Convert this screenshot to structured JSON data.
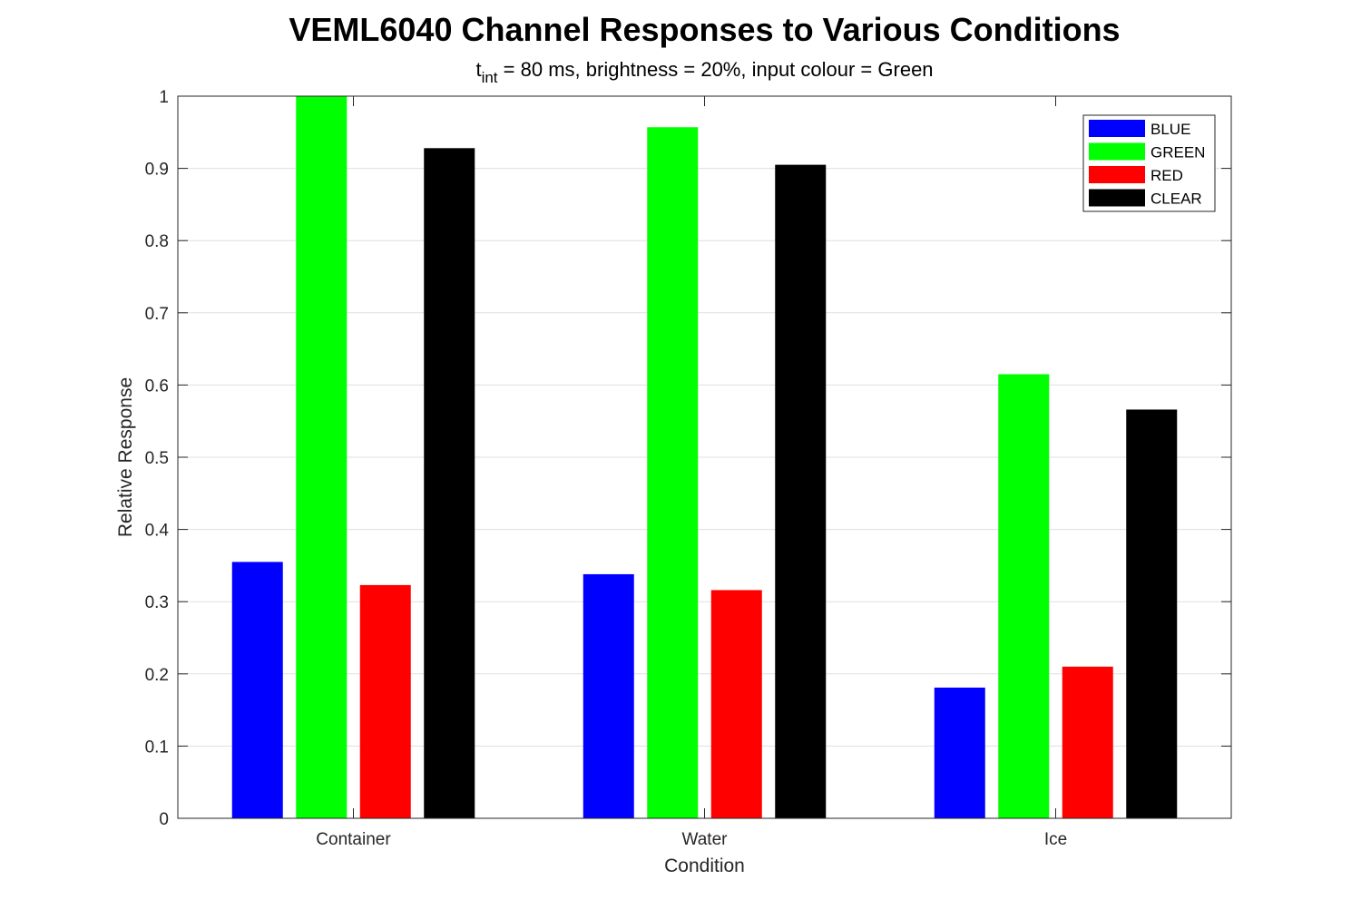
{
  "chart_data": {
    "type": "bar",
    "title": "VEML6040 Channel Responses to Various Conditions",
    "subtitle": {
      "prefix": "t",
      "subscript": "int",
      "rest": " = 80 ms, brightness = 20%, input colour = Green"
    },
    "xlabel": "Condition",
    "ylabel": "Relative Response",
    "categories": [
      "Container",
      "Water",
      "Ice"
    ],
    "ylim": [
      0,
      1
    ],
    "yticks": [
      "0",
      "0.1",
      "0.2",
      "0.3",
      "0.4",
      "0.5",
      "0.6",
      "0.7",
      "0.8",
      "0.9",
      "1"
    ],
    "grid": true,
    "legend_position": "top-right",
    "series": [
      {
        "name": "BLUE",
        "color": "#0000ff",
        "values": [
          0.355,
          0.338,
          0.181
        ]
      },
      {
        "name": "GREEN",
        "color": "#00ff00",
        "values": [
          1.0,
          0.957,
          0.615
        ]
      },
      {
        "name": "RED",
        "color": "#ff0000",
        "values": [
          0.323,
          0.316,
          0.21
        ]
      },
      {
        "name": "CLEAR",
        "color": "#000000",
        "values": [
          0.928,
          0.905,
          0.566
        ]
      }
    ]
  }
}
